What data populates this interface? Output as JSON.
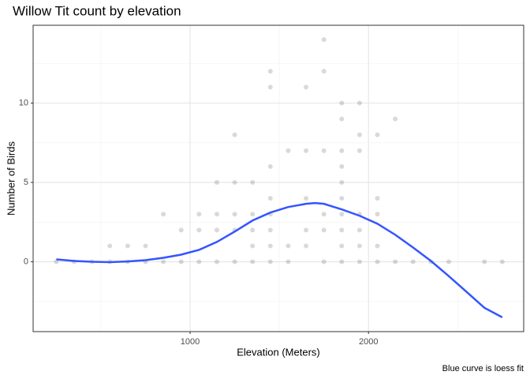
{
  "chart_data": {
    "type": "scatter",
    "title": "Willow Tit count by elevation",
    "x_label": "Elevation (Meters)",
    "y_label": "Number of Birds",
    "caption": "Blue curve is loess fit",
    "x": [
      250,
      350,
      450,
      550,
      550,
      650,
      650,
      750,
      750,
      850,
      850,
      950,
      950,
      1050,
      1050,
      1050,
      1150,
      1150,
      1150,
      1150,
      1250,
      1250,
      1250,
      1250,
      1250,
      1350,
      1350,
      1350,
      1350,
      1350,
      1450,
      1450,
      1450,
      1450,
      1450,
      1450,
      1450,
      1450,
      1550,
      1550,
      1550,
      1650,
      1650,
      1650,
      1650,
      1650,
      1750,
      1750,
      1750,
      1750,
      1750,
      1750,
      1850,
      1850,
      1850,
      1850,
      1850,
      1850,
      1850,
      1850,
      1850,
      1850,
      1950,
      1950,
      1950,
      1950,
      1950,
      1950,
      1950,
      2050,
      2050,
      2050,
      2050,
      2050,
      2150,
      2150,
      2250,
      2350,
      2450,
      2650,
      2750
    ],
    "values": [
      0,
      0,
      0,
      0,
      1,
      0,
      1,
      0,
      1,
      0,
      3,
      0,
      2,
      0,
      2,
      3,
      0,
      2,
      3,
      5,
      0,
      2,
      3,
      5,
      8,
      0,
      1,
      2,
      3,
      5,
      0,
      1,
      2,
      3,
      4,
      6,
      11,
      12,
      0,
      1,
      7,
      1,
      2,
      4,
      7,
      11,
      0,
      2,
      3,
      7,
      12,
      14,
      0,
      1,
      2,
      3,
      4,
      5,
      6,
      7,
      9,
      10,
      0,
      1,
      2,
      3,
      7,
      8,
      10,
      0,
      1,
      3,
      4,
      8,
      0,
      9,
      0,
      0,
      0,
      0,
      0
    ],
    "point_color": "#000000",
    "point_opacity": 0.15,
    "curve": {
      "color": "#3355ff",
      "x": [
        250,
        350,
        450,
        550,
        650,
        750,
        850,
        950,
        1050,
        1150,
        1250,
        1350,
        1450,
        1550,
        1650,
        1700,
        1750,
        1850,
        1950,
        2050,
        2150,
        2250,
        2350,
        2450,
        2550,
        2650,
        2750
      ],
      "values": [
        0.15,
        0.05,
        0,
        -0.02,
        0.02,
        0.1,
        0.25,
        0.45,
        0.75,
        1.25,
        1.9,
        2.6,
        3.1,
        3.45,
        3.65,
        3.7,
        3.65,
        3.3,
        2.9,
        2.4,
        1.7,
        0.9,
        0.05,
        -0.9,
        -1.9,
        -2.9,
        -3.5
      ]
    },
    "xlim": [
      120,
      2870
    ],
    "ylim": [
      -4.4,
      14.9
    ],
    "xticks": [
      1000,
      2000
    ],
    "yticks": [
      0,
      5,
      10
    ],
    "x_minor_ticks": [
      500,
      1500,
      2500
    ],
    "y_minor_ticks": [
      -2.5,
      2.5,
      7.5,
      12.5
    ],
    "grid": true
  }
}
